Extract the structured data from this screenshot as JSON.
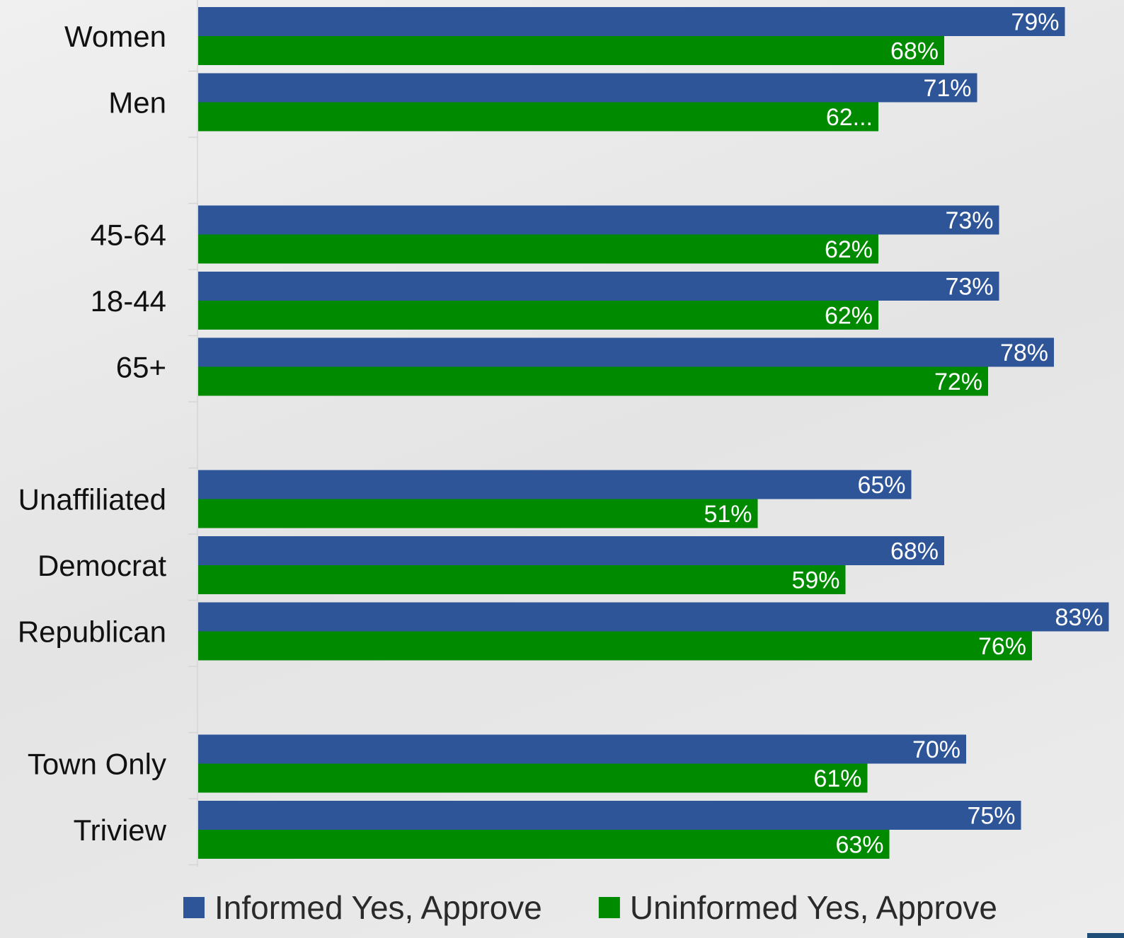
{
  "chart_data": {
    "type": "bar",
    "orientation": "horizontal",
    "categories": [
      "Women",
      "Men",
      "",
      "45-64",
      "18-44",
      "65+",
      "",
      "Unaffiliated",
      "Democrat",
      "Republican",
      "",
      "Town Only",
      "Triview"
    ],
    "series": [
      {
        "name": "Informed Yes, Approve",
        "color": "#2e5597",
        "values": [
          79,
          71,
          null,
          73,
          73,
          78,
          null,
          65,
          68,
          83,
          null,
          70,
          75
        ],
        "data_labels": [
          "79%",
          "71%",
          "",
          "73%",
          "73%",
          "78%",
          "",
          "65%",
          "68%",
          "83%",
          "",
          "70%",
          "75%"
        ]
      },
      {
        "name": "Uninformed Yes, Approve",
        "color": "#008a00",
        "values": [
          68,
          62,
          null,
          62,
          62,
          72,
          null,
          51,
          59,
          76,
          null,
          61,
          63
        ],
        "data_labels": [
          "68%",
          "62...",
          "",
          "62%",
          "62%",
          "72%",
          "",
          "51%",
          "59%",
          "76%",
          "",
          "61%",
          "63%"
        ]
      }
    ],
    "xlim": [
      0,
      83
    ],
    "grid": false,
    "legend": "bottom"
  }
}
